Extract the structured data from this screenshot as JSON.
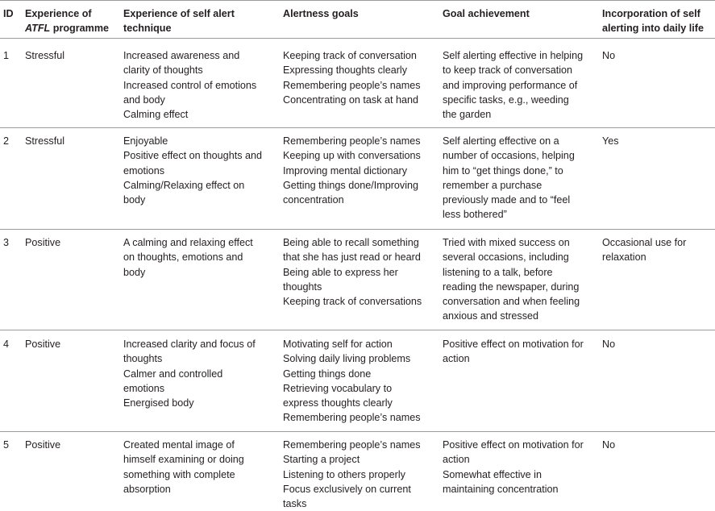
{
  "header": {
    "id": "ID",
    "experience_atfl_line1": "Experience of",
    "experience_atfl_italic": "ATFL",
    "experience_atfl_rest": " programme",
    "self_alert_line1": "Experience of self alert",
    "self_alert_line2": "technique",
    "alertness_goals": "Alertness goals",
    "goal_achievement": "Goal achievement",
    "incorporation_w1": "Incorporation",
    "incorporation_w2": "of",
    "incorporation_w3": "self",
    "incorporation_line2": "alerting into daily life"
  },
  "rows": [
    {
      "id": "1",
      "experience": "Stressful",
      "technique": [
        "Increased awareness and",
        "clarity of thoughts",
        "Increased control of emotions",
        "and body",
        "Calming effect"
      ],
      "goals": [
        "Keeping track of conversation",
        "Expressing thoughts clearly",
        "Remembering people’s names",
        "Concentrating on task at hand"
      ],
      "achievement": [
        "Self alerting effective in helping",
        "to keep track of conversation",
        "and improving performance of",
        "specific tasks, e.g., weeding",
        "the garden"
      ],
      "incorporation": [
        "No"
      ]
    },
    {
      "id": "2",
      "experience": "Stressful",
      "technique": [
        "Enjoyable",
        "Positive effect on thoughts and",
        "emotions",
        "Calming/Relaxing effect on",
        "body"
      ],
      "goals": [
        "Remembering people’s names",
        "Keeping up with conversations",
        "Improving mental dictionary",
        "Getting things done/Improving",
        "concentration"
      ],
      "achievement": [
        "Self alerting effective on a",
        "number of occasions, helping",
        "him to “get things done,” to",
        "remember a purchase",
        "previously made and to “feel",
        "less bothered”"
      ],
      "incorporation": [
        "Yes"
      ]
    },
    {
      "id": "3",
      "experience": "Positive",
      "technique": [
        "A calming and relaxing effect",
        "on thoughts, emotions and",
        "body"
      ],
      "goals": [
        "Being able to recall something",
        "that she has just read or heard",
        "Being able to express her",
        "thoughts",
        "Keeping track of conversations"
      ],
      "achievement": [
        "Tried with mixed success on",
        "several occasions, including",
        "listening to a talk, before",
        "reading the newspaper, during",
        "conversation and when feeling",
        "anxious and stressed"
      ],
      "incorporation_w1": "Occasional",
      "incorporation_w2": "use",
      "incorporation_w3": "for",
      "incorporation_line2": "relaxation"
    },
    {
      "id": "4",
      "experience": "Positive",
      "technique": [
        "Increased clarity and focus of",
        "thoughts",
        "Calmer and controlled",
        "emotions",
        "Energised body"
      ],
      "goals": [
        "Motivating self for action",
        "Solving daily living problems",
        "Getting things done",
        "Retrieving vocabulary to",
        "express thoughts clearly",
        "Remembering people’s names"
      ],
      "achievement": [
        "Positive effect on motivation for",
        "action"
      ],
      "incorporation": [
        "No"
      ]
    },
    {
      "id": "5",
      "experience": "Positive",
      "technique": [
        "Created mental image of",
        "himself examining or doing",
        "something with complete",
        "absorption"
      ],
      "goals": [
        "Remembering people’s names",
        "Starting a project",
        "Listening to others properly",
        "Focus exclusively on current",
        "tasks"
      ],
      "achievement": [
        "Positive effect on motivation for",
        "action",
        "Somewhat effective in",
        "maintaining concentration"
      ],
      "incorporation": [
        "No"
      ]
    }
  ]
}
